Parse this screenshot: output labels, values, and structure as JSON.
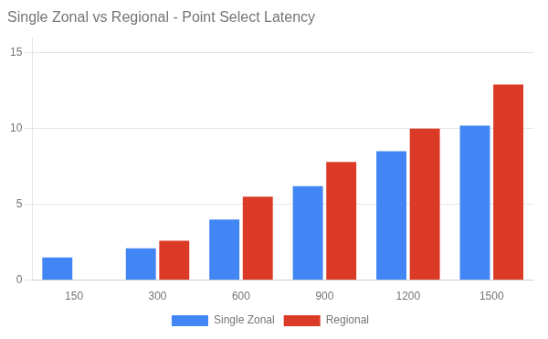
{
  "chart_data": {
    "type": "bar",
    "title": "Single Zonal vs Regional - Point Select Latency",
    "categories": [
      150,
      300,
      600,
      900,
      1200,
      1500
    ],
    "series": [
      {
        "name": "Single Zonal",
        "color": "#4285f4",
        "values": [
          1.5,
          2.1,
          4.0,
          6.2,
          8.5,
          10.2
        ]
      },
      {
        "name": "Regional",
        "color": "#db3b26",
        "values": [
          0.0,
          2.6,
          5.5,
          7.8,
          10.0,
          12.9
        ]
      }
    ],
    "ylim": [
      0,
      16
    ],
    "yticks": [
      0,
      5,
      10,
      15
    ],
    "grid": true,
    "legend": "bottom"
  }
}
